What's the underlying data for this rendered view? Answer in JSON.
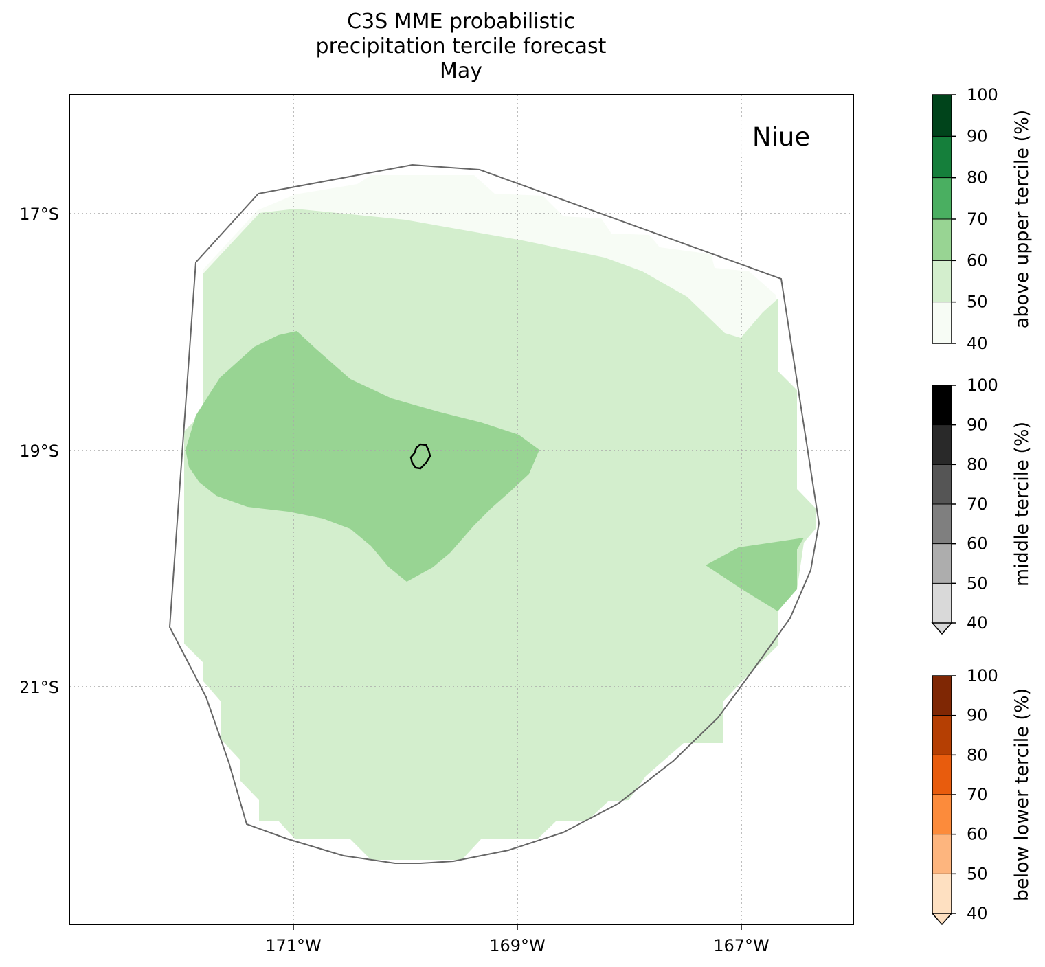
{
  "title": {
    "line1": "C3S MME probabilistic",
    "line2": "precipitation tercile forecast",
    "line3": "May"
  },
  "map": {
    "region_label": "Niue",
    "lon_ticks": [
      {
        "value": -171,
        "label": "171°W"
      },
      {
        "value": -169,
        "label": "169°W"
      },
      {
        "value": -167,
        "label": "167°W"
      }
    ],
    "lat_ticks": [
      {
        "value": -17,
        "label": "17°S"
      },
      {
        "value": -19,
        "label": "19°S"
      },
      {
        "value": -21,
        "label": "21°S"
      }
    ],
    "lon_range": [
      -173,
      -166
    ],
    "lat_range": [
      -22.9,
      -16.0
    ],
    "gridlines": true,
    "forecast_category": "above upper tercile",
    "colors": {
      "above_40_50": "#f7fcf5",
      "above_50_60": "#d3eecd",
      "above_60_70": "#98d493",
      "boundary": "#666666",
      "island": "#000000",
      "gridline": "#a9a9a9"
    }
  },
  "colorbars": [
    {
      "label": "above upper tercile (%)",
      "ticks": [
        "100",
        "90",
        "80",
        "70",
        "60",
        "50",
        "40"
      ],
      "colors": [
        "#f7fcf5",
        "#d3eecd",
        "#98d493",
        "#4aaf61",
        "#157f3b",
        "#00441b"
      ],
      "extend_min": false
    },
    {
      "label": "middle tercile (%)",
      "ticks": [
        "100",
        "90",
        "80",
        "70",
        "60",
        "50",
        "40"
      ],
      "colors": [
        "#d9d9d9",
        "#adadad",
        "#7f7f7f",
        "#555555",
        "#292929",
        "#000000"
      ],
      "extend_min": true
    },
    {
      "label": "below lower tercile (%)",
      "ticks": [
        "100",
        "90",
        "80",
        "70",
        "60",
        "50",
        "40"
      ],
      "colors": [
        "#fee0c1",
        "#fdb57e",
        "#fc8b3b",
        "#e85c0d",
        "#b53f03",
        "#7f2704"
      ],
      "extend_min": true
    }
  ]
}
